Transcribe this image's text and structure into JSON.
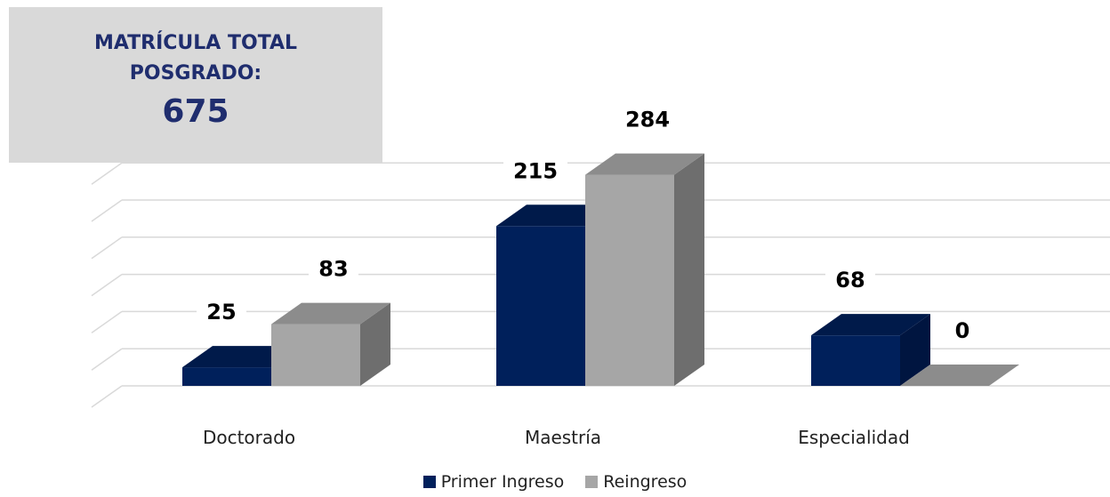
{
  "callout": {
    "line1": "MATRÍCULA TOTAL",
    "line2": "POSGRADO:",
    "total": "675"
  },
  "colors": {
    "primer_front": "#00205b",
    "primer_top": "#001a4a",
    "primer_side": "#001540",
    "reingreso_front": "#a6a6a6",
    "reingreso_top": "#8c8c8c",
    "reingreso_side": "#6e6e6e",
    "grid": "#d9d9d9"
  },
  "chart_data": {
    "type": "bar",
    "categories": [
      "Doctorado",
      "Maestría",
      "Especialidad"
    ],
    "series": [
      {
        "name": "Primer Ingreso",
        "values": [
          25,
          215,
          68
        ]
      },
      {
        "name": "Reingreso",
        "values": [
          83,
          284,
          0
        ]
      }
    ],
    "ylim": [
      0,
      300
    ],
    "grid": true,
    "legend": "bottom",
    "title": "",
    "xlabel": "",
    "ylabel": ""
  }
}
